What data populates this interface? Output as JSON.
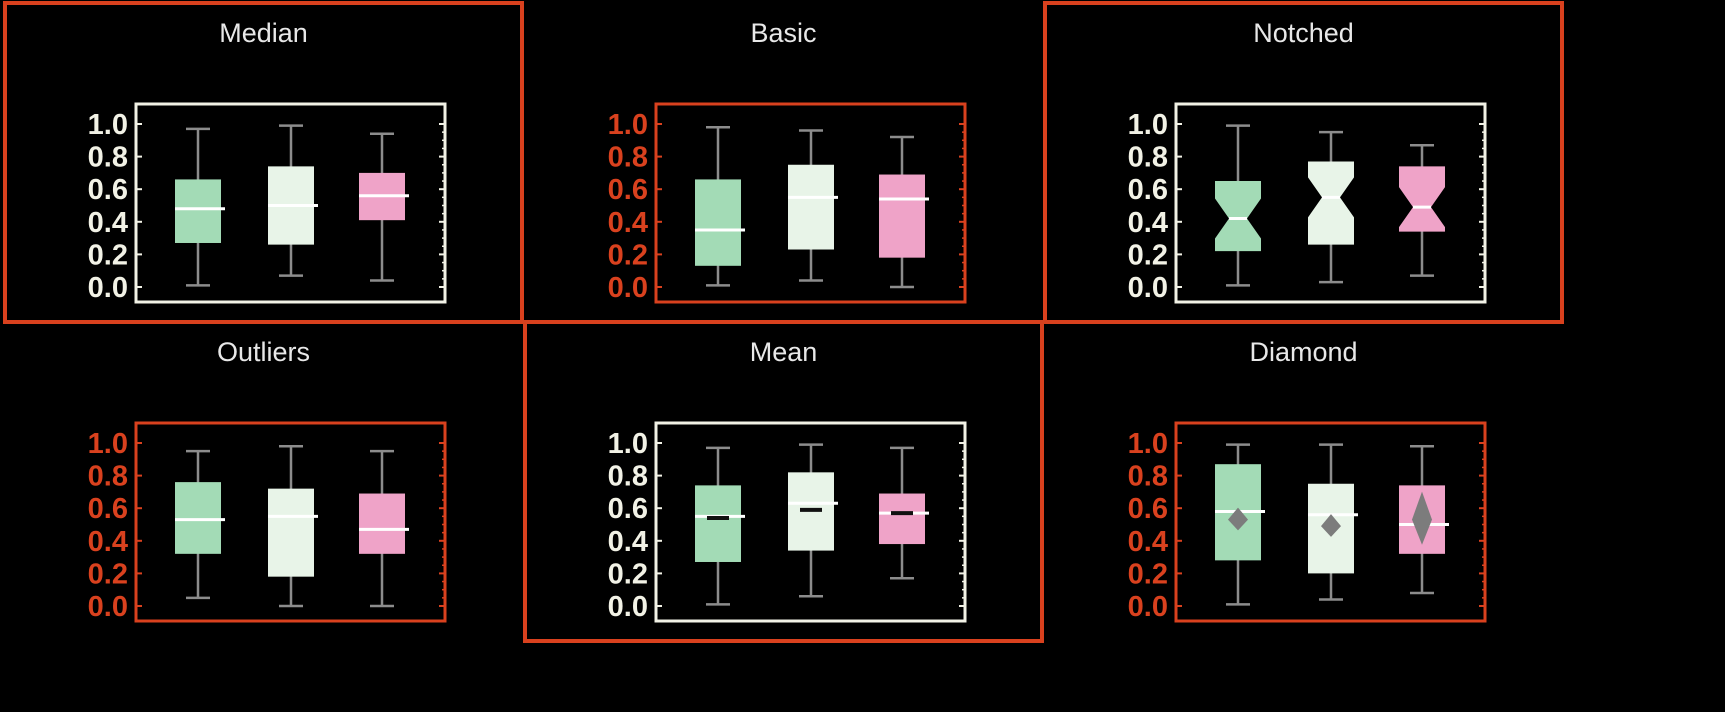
{
  "colors": {
    "background": "#000000",
    "highlight": "#d9411e",
    "light_axis": "#f2f2e6",
    "title_text": "#e8e8e8",
    "whisker": "#8c8c8c",
    "median_line": "#ffffff",
    "mean_marker": "#111111",
    "diamond_marker": "#7c7c7c",
    "series": [
      "#a3dbb6",
      "#e8f4e8",
      "#efa3c8"
    ]
  },
  "chart_data": [
    {
      "type": "box",
      "title": "Median",
      "variant": "median",
      "highlighted": true,
      "axis_color": "light",
      "ylim": [
        0.0,
        1.05
      ],
      "yticks": [
        "0.0",
        "0.2",
        "0.4",
        "0.6",
        "0.8",
        "1.0"
      ],
      "boxes": [
        {
          "min": 0.01,
          "q1": 0.27,
          "median": 0.48,
          "q3": 0.66,
          "max": 0.97
        },
        {
          "min": 0.07,
          "q1": 0.26,
          "median": 0.5,
          "q3": 0.74,
          "max": 0.99
        },
        {
          "min": 0.04,
          "q1": 0.41,
          "median": 0.56,
          "q3": 0.7,
          "max": 0.94
        }
      ]
    },
    {
      "type": "box",
      "title": "Basic",
      "variant": "basic",
      "highlighted": false,
      "axis_color": "highlight",
      "ylim": [
        0.0,
        1.05
      ],
      "yticks": [
        "0.0",
        "0.2",
        "0.4",
        "0.6",
        "0.8",
        "1.0"
      ],
      "boxes": [
        {
          "min": 0.01,
          "q1": 0.13,
          "median": 0.35,
          "q3": 0.66,
          "max": 0.98
        },
        {
          "min": 0.04,
          "q1": 0.23,
          "median": 0.55,
          "q3": 0.75,
          "max": 0.96
        },
        {
          "min": 0.0,
          "q1": 0.18,
          "median": 0.54,
          "q3": 0.69,
          "max": 0.92
        }
      ]
    },
    {
      "type": "box",
      "title": "Notched",
      "variant": "notched",
      "highlighted": true,
      "axis_color": "light",
      "ylim": [
        0.0,
        1.05
      ],
      "yticks": [
        "0.0",
        "0.2",
        "0.4",
        "0.6",
        "0.8",
        "1.0"
      ],
      "boxes": [
        {
          "min": 0.01,
          "q1": 0.22,
          "median": 0.42,
          "q3": 0.65,
          "max": 0.99
        },
        {
          "min": 0.03,
          "q1": 0.26,
          "median": 0.55,
          "q3": 0.77,
          "max": 0.95
        },
        {
          "min": 0.07,
          "q1": 0.34,
          "median": 0.49,
          "q3": 0.74,
          "max": 0.87
        }
      ]
    },
    {
      "type": "box",
      "title": "Outliers",
      "variant": "outliers",
      "highlighted": false,
      "axis_color": "highlight",
      "ylim": [
        0.0,
        1.05
      ],
      "yticks": [
        "0.0",
        "0.2",
        "0.4",
        "0.6",
        "0.8",
        "1.0"
      ],
      "boxes": [
        {
          "min": 0.05,
          "q1": 0.32,
          "median": 0.53,
          "q3": 0.76,
          "max": 0.95
        },
        {
          "min": 0.0,
          "q1": 0.18,
          "median": 0.55,
          "q3": 0.72,
          "max": 0.98
        },
        {
          "min": 0.0,
          "q1": 0.32,
          "median": 0.47,
          "q3": 0.69,
          "max": 0.95
        }
      ]
    },
    {
      "type": "box",
      "title": "Mean",
      "variant": "mean",
      "highlighted": true,
      "axis_color": "light",
      "ylim": [
        0.0,
        1.05
      ],
      "yticks": [
        "0.0",
        "0.2",
        "0.4",
        "0.6",
        "0.8",
        "1.0"
      ],
      "boxes": [
        {
          "min": 0.01,
          "q1": 0.27,
          "median": 0.55,
          "mean": 0.54,
          "q3": 0.74,
          "max": 0.97
        },
        {
          "min": 0.06,
          "q1": 0.34,
          "median": 0.63,
          "mean": 0.59,
          "q3": 0.82,
          "max": 0.99
        },
        {
          "min": 0.17,
          "q1": 0.38,
          "median": 0.57,
          "mean": 0.57,
          "q3": 0.69,
          "max": 0.97
        }
      ]
    },
    {
      "type": "box",
      "title": "Diamond",
      "variant": "diamond",
      "highlighted": false,
      "axis_color": "highlight",
      "ylim": [
        0.0,
        1.05
      ],
      "yticks": [
        "0.0",
        "0.2",
        "0.4",
        "0.6",
        "0.8",
        "1.0"
      ],
      "boxes": [
        {
          "min": 0.01,
          "q1": 0.28,
          "median": 0.58,
          "mean": 0.53,
          "q3": 0.87,
          "max": 0.99
        },
        {
          "min": 0.04,
          "q1": 0.2,
          "median": 0.56,
          "mean": 0.49,
          "q3": 0.75,
          "max": 0.99
        },
        {
          "min": 0.08,
          "q1": 0.32,
          "median": 0.5,
          "mean": 0.53,
          "q3": 0.74,
          "max": 0.98
        }
      ]
    }
  ]
}
